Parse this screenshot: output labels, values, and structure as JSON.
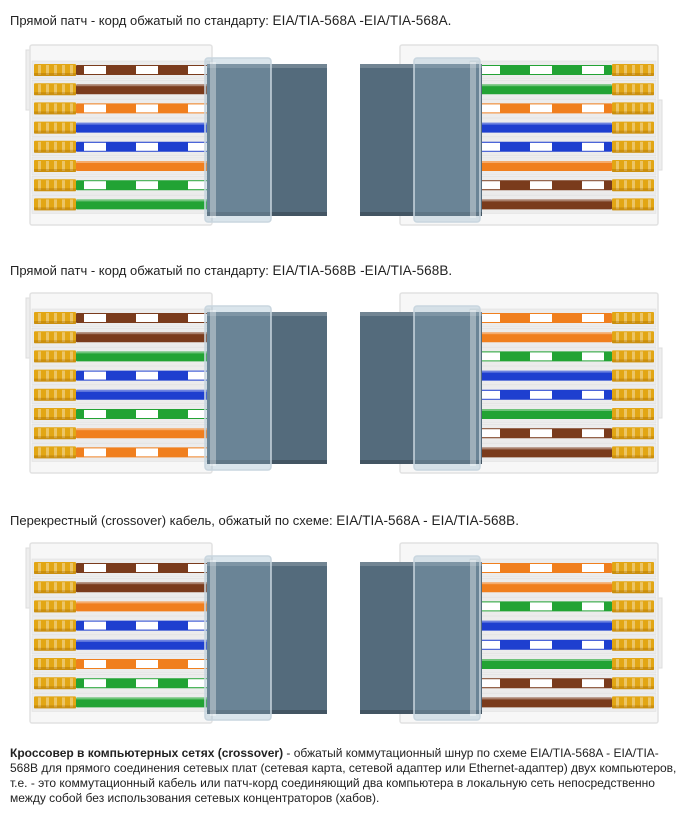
{
  "sections": [
    {
      "caption_text": "Прямой патч - корд обжатый по стандарту: ",
      "caption_standard": "EIA/TIA-568A -EIA/TIA-568A.",
      "left_wires": [
        "white-brown",
        "brown",
        "white-orange",
        "blue",
        "white-blue",
        "orange",
        "white-green",
        "green"
      ],
      "right_wires": [
        "white-green",
        "green",
        "white-orange",
        "blue",
        "white-blue",
        "orange",
        "white-brown",
        "brown"
      ]
    },
    {
      "caption_text": "Прямой патч - корд обжатый по стандарту: ",
      "caption_standard": "EIA/TIA-568B -EIA/TIA-568B.",
      "left_wires": [
        "white-brown",
        "brown",
        "green",
        "white-blue",
        "blue",
        "white-green",
        "orange",
        "white-orange"
      ],
      "right_wires": [
        "white-orange",
        "orange",
        "white-green",
        "blue",
        "white-blue",
        "green",
        "white-brown",
        "brown"
      ]
    },
    {
      "caption_text": "Перекрестный (crossover) кабель, обжатый по схеме: ",
      "caption_standard": "EIA/TIA-568A - EIA/TIA-568B.",
      "left_wires": [
        "white-brown",
        "brown",
        "orange",
        "white-blue",
        "blue",
        "white-orange",
        "white-green",
        "green"
      ],
      "right_wires": [
        "white-orange",
        "orange",
        "white-green",
        "blue",
        "white-blue",
        "green",
        "white-brown",
        "brown"
      ]
    }
  ],
  "colors": {
    "brown": "#7a3b1c",
    "orange": "#f07f1e",
    "green": "#22a334",
    "blue": "#1e3fcf",
    "white": "#ffffff",
    "gold": "#e2a614",
    "housing": "#f7f7f7",
    "sleeve": "#546b7c"
  },
  "description": {
    "bold": "Кроссовер в компьютерных сетях (crossover)",
    "text": " - обжатый коммутационный шнур по схеме EIA/TIA-568A - EIA/TIA-568B для прямого соединения сетевых плат (сетевая карта, сетевой адаптер или Ethernet-адаптер) двух компьютеров, т.е. - это коммутационный кабель или патч-корд соединяющий два компьютера в локальную сеть непосредственно между собой без использования сетевых концентраторов (хабов)."
  }
}
